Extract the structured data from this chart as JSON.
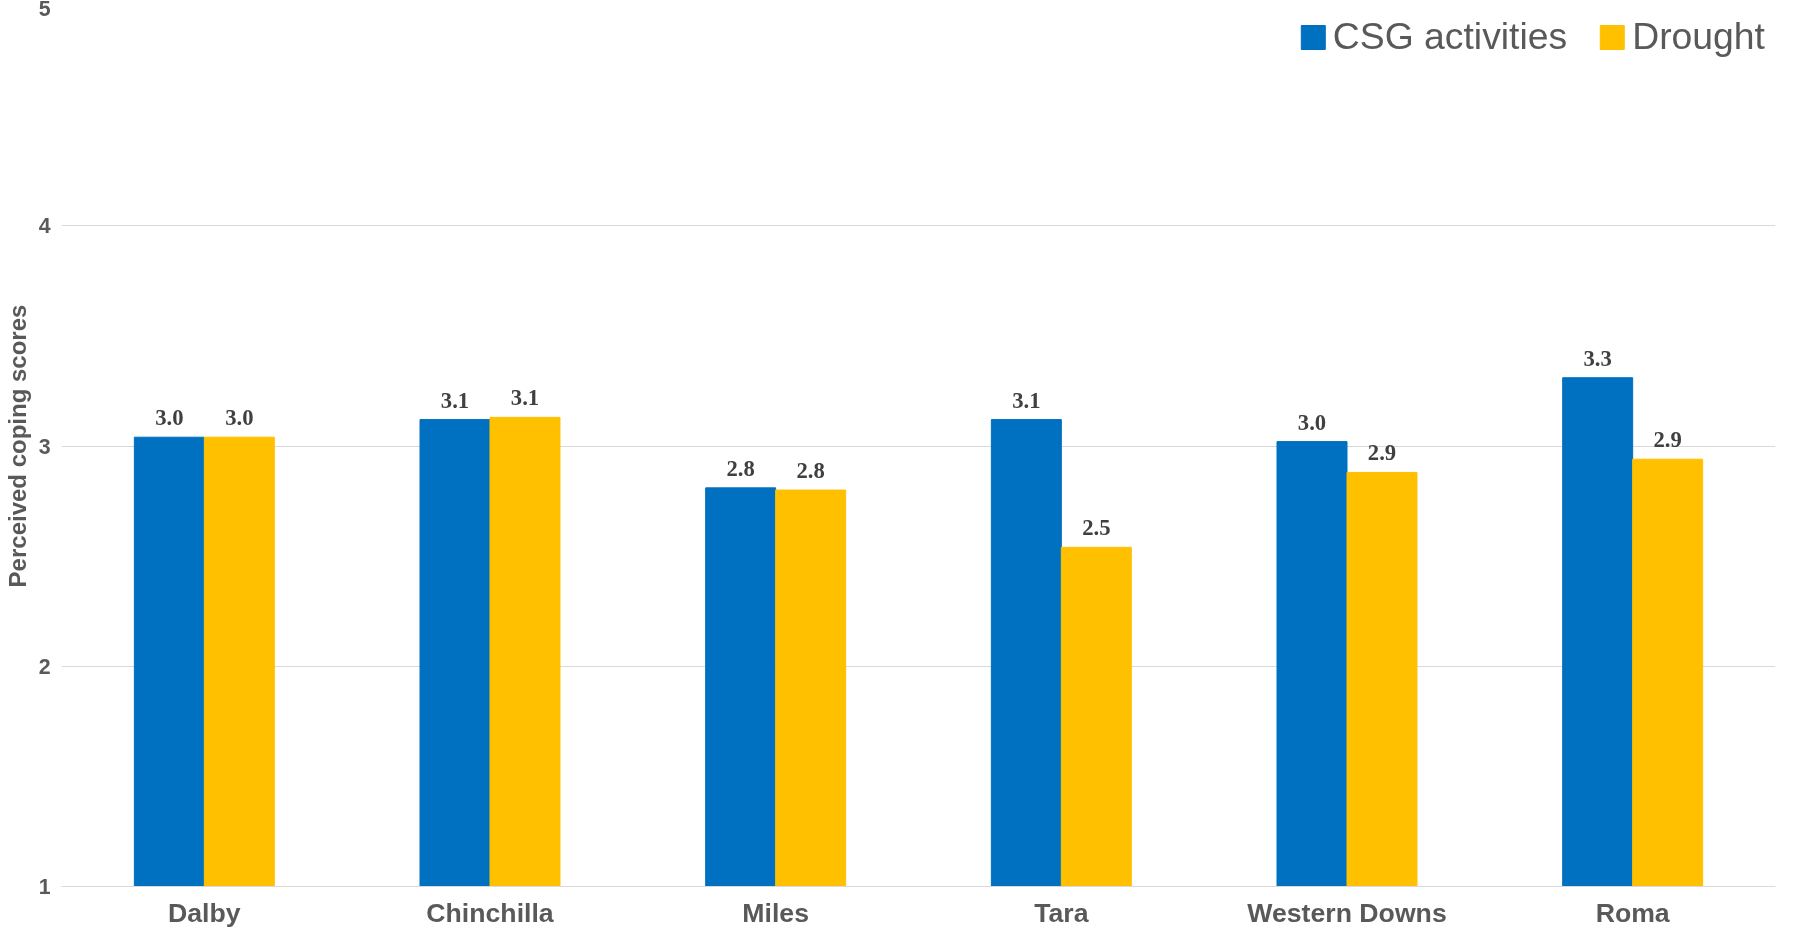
{
  "chart_data": {
    "type": "bar",
    "ylabel": "Perceived coping scores",
    "categories": [
      "Dalby",
      "Chinchilla",
      "Miles",
      "Tara",
      "Western Downs",
      "Roma"
    ],
    "series": [
      {
        "name": "CSG activities",
        "color": "#0070c0",
        "values": [
          3.04,
          3.12,
          2.81,
          3.12,
          3.02,
          3.31
        ],
        "value_labels": [
          "3.0",
          "3.1",
          "2.8",
          "3.1",
          "3.0",
          "3.3"
        ]
      },
      {
        "name": "Drought",
        "color": "#ffc000",
        "values": [
          3.04,
          3.13,
          2.8,
          2.54,
          2.88,
          2.94
        ],
        "value_labels": [
          "3.0",
          "3.1",
          "2.8",
          "2.5",
          "2.9",
          "2.9"
        ]
      }
    ],
    "ylim": [
      1,
      5
    ],
    "yticks": [
      1,
      2,
      3,
      4,
      5
    ],
    "grid": "y",
    "legend": "top right"
  }
}
